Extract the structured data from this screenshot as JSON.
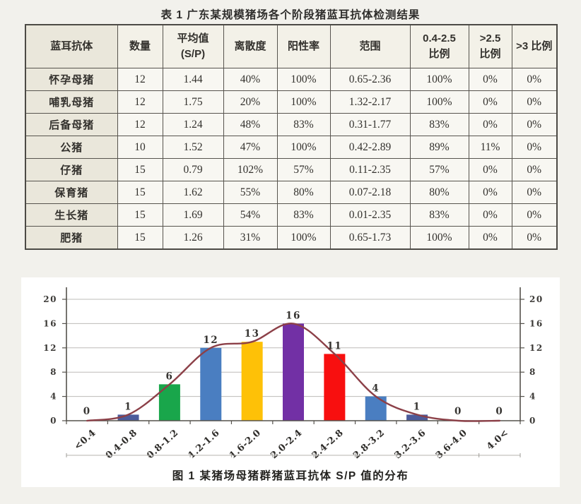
{
  "page": {
    "background": "#f2f1ec",
    "panel_background": "#ffffff"
  },
  "chart_data": [
    {
      "type": "table",
      "title": "表 1 广东某规模猪场各个阶段猪蓝耳抗体检测结果",
      "columns": [
        "蓝耳抗体",
        "数量",
        "平均值\n(S/P)",
        "离散度",
        "阳性率",
        "范围",
        "0.4-2.5\n比例",
        ">2.5\n比例",
        ">3 比例"
      ],
      "rows": [
        [
          "怀孕母猪",
          "12",
          "1.44",
          "40%",
          "100%",
          "0.65-2.36",
          "100%",
          "0%",
          "0%"
        ],
        [
          "哺乳母猪",
          "12",
          "1.75",
          "20%",
          "100%",
          "1.32-2.17",
          "100%",
          "0%",
          "0%"
        ],
        [
          "后备母猪",
          "12",
          "1.24",
          "48%",
          "83%",
          "0.31-1.77",
          "83%",
          "0%",
          "0%"
        ],
        [
          "公猪",
          "10",
          "1.52",
          "47%",
          "100%",
          "0.42-2.89",
          "89%",
          "11%",
          "0%"
        ],
        [
          "仔猪",
          "15",
          "0.79",
          "102%",
          "57%",
          "0.11-2.35",
          "57%",
          "0%",
          "0%"
        ],
        [
          "保育猪",
          "15",
          "1.62",
          "55%",
          "80%",
          "0.07-2.18",
          "80%",
          "0%",
          "0%"
        ],
        [
          "生长猪",
          "15",
          "1.69",
          "54%",
          "83%",
          "0.01-2.35",
          "83%",
          "0%",
          "0%"
        ],
        [
          "肥猪",
          "15",
          "1.26",
          "31%",
          "100%",
          "0.65-1.73",
          "100%",
          "0%",
          "0%"
        ]
      ]
    },
    {
      "type": "bar",
      "caption": "图 1 某猪场母猪群猪蓝耳抗体 S/P 值的分布",
      "categories": [
        "<0.4",
        "0.4-0.8",
        "0.8-1.2",
        "1.2-1.6",
        "1.6-2.0",
        "2.0-2.4",
        "2.4-2.8",
        "2.8-3.2",
        "3.2-3.6",
        "3.6-4.0",
        "4.0<"
      ],
      "values": [
        0,
        1,
        6,
        12,
        13,
        16,
        11,
        4,
        1,
        0,
        0
      ],
      "bar_colors": [
        null,
        "#4c5b9b",
        "#19a64b",
        "#4a7ec1",
        "#fec107",
        "#7230a5",
        "#f80f0f",
        "#4a7ec1",
        "#4c5b9b",
        null,
        null
      ],
      "line": {
        "overlay": true,
        "color": "#8c4048",
        "values": [
          0,
          1,
          6,
          12,
          13,
          16,
          11,
          4,
          1,
          0,
          0
        ]
      },
      "yticks": [
        0,
        4,
        8,
        12,
        16,
        20
      ],
      "ylim": [
        0,
        20
      ],
      "xlabel": "",
      "ylabel": "",
      "grid": true,
      "legend": "none",
      "axes": {
        "left": true,
        "right": true
      }
    }
  ]
}
